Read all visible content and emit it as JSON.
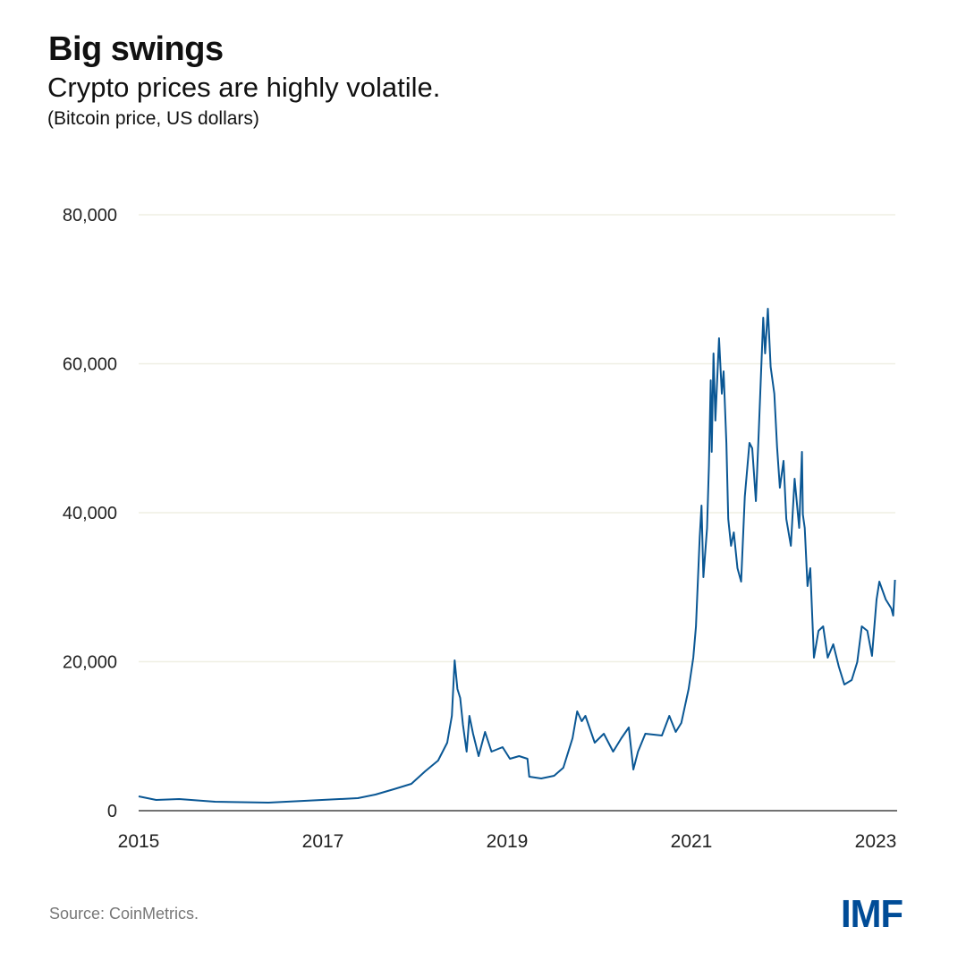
{
  "title": "Big swings",
  "subtitle": "Crypto prices are highly volatile.",
  "note": "(Bitcoin price, US dollars)",
  "source": "Source: CoinMetrics.",
  "logo": "IMF",
  "colors": {
    "line": "#0a5794",
    "grid": "#efefe4",
    "axis": "#444444",
    "logo": "#004c97"
  },
  "chart_data": {
    "type": "line",
    "title": "Big swings",
    "subtitle": "Crypto prices are highly volatile.",
    "ylabel": "Bitcoin price, US dollars",
    "xlabel": "",
    "xlim": [
      2015,
      2023.21
    ],
    "ylim": [
      0,
      80000
    ],
    "grid": true,
    "y_ticks": [
      0,
      20000,
      40000,
      60000,
      80000
    ],
    "y_tick_labels": [
      "0",
      "20,000",
      "40,000",
      "60,000",
      "80,000"
    ],
    "x_ticks": [
      2015,
      2017,
      2019,
      2021,
      2023
    ],
    "x_tick_labels": [
      "2015",
      "2017",
      "2019",
      "2021",
      "2023"
    ],
    "series": [
      {
        "name": "Bitcoin price",
        "x": [
          2015.0,
          2015.19,
          2015.44,
          2015.83,
          2016.41,
          2016.99,
          2017.38,
          2017.57,
          2017.77,
          2017.96,
          2018.11,
          2018.25,
          2018.35,
          2018.4,
          2018.43,
          2018.46,
          2018.49,
          2018.52,
          2018.56,
          2018.59,
          2018.63,
          2018.69,
          2018.76,
          2018.83,
          2018.95,
          2019.03,
          2019.13,
          2019.22,
          2019.24,
          2019.37,
          2019.51,
          2019.61,
          2019.71,
          2019.76,
          2019.81,
          2019.85,
          2019.95,
          2020.05,
          2020.15,
          2020.24,
          2020.32,
          2020.37,
          2020.42,
          2020.5,
          2020.68,
          2020.76,
          2020.83,
          2020.89,
          2020.97,
          2021.02,
          2021.05,
          2021.09,
          2021.11,
          2021.13,
          2021.17,
          2021.19,
          2021.21,
          2021.22,
          2021.24,
          2021.26,
          2021.3,
          2021.33,
          2021.35,
          2021.38,
          2021.4,
          2021.43,
          2021.46,
          2021.5,
          2021.54,
          2021.58,
          2021.63,
          2021.66,
          2021.7,
          2021.73,
          2021.78,
          2021.8,
          2021.83,
          2021.86,
          2021.9,
          2021.93,
          2021.96,
          2022.0,
          2022.03,
          2022.08,
          2022.12,
          2022.17,
          2022.2,
          2022.21,
          2022.23,
          2022.26,
          2022.29,
          2022.33,
          2022.38,
          2022.43,
          2022.48,
          2022.54,
          2022.6,
          2022.66,
          2022.74,
          2022.8,
          2022.85,
          2022.91,
          2022.96,
          2023.01,
          2023.04,
          2023.11,
          2023.17,
          2023.19,
          2023.21
        ],
        "values": [
          1920,
          1440,
          1560,
          1200,
          1080,
          1440,
          1680,
          2160,
          2880,
          3600,
          5290,
          6730,
          9130,
          12730,
          20180,
          16340,
          15130,
          11530,
          7930,
          12730,
          10330,
          7330,
          10570,
          7930,
          8530,
          6970,
          7330,
          6970,
          4560,
          4320,
          4680,
          5770,
          9730,
          13330,
          12010,
          12730,
          9130,
          10330,
          7930,
          9730,
          11170,
          5530,
          7930,
          10330,
          10090,
          12730,
          10570,
          11770,
          16340,
          20540,
          24750,
          36760,
          40960,
          31350,
          37960,
          46370,
          57780,
          48170,
          61380,
          52370,
          63420,
          55980,
          58980,
          49370,
          39160,
          35560,
          37360,
          32550,
          30750,
          42160,
          49370,
          48650,
          41560,
          50570,
          66190,
          61380,
          67390,
          59580,
          55980,
          48770,
          43360,
          46970,
          39160,
          35560,
          44560,
          37960,
          48170,
          39760,
          37960,
          30150,
          32550,
          20540,
          24150,
          24750,
          20540,
          22340,
          19340,
          16940,
          17540,
          19940,
          24750,
          24150,
          20780,
          28350,
          30750,
          28350,
          27150,
          26190,
          30990
        ]
      }
    ]
  }
}
